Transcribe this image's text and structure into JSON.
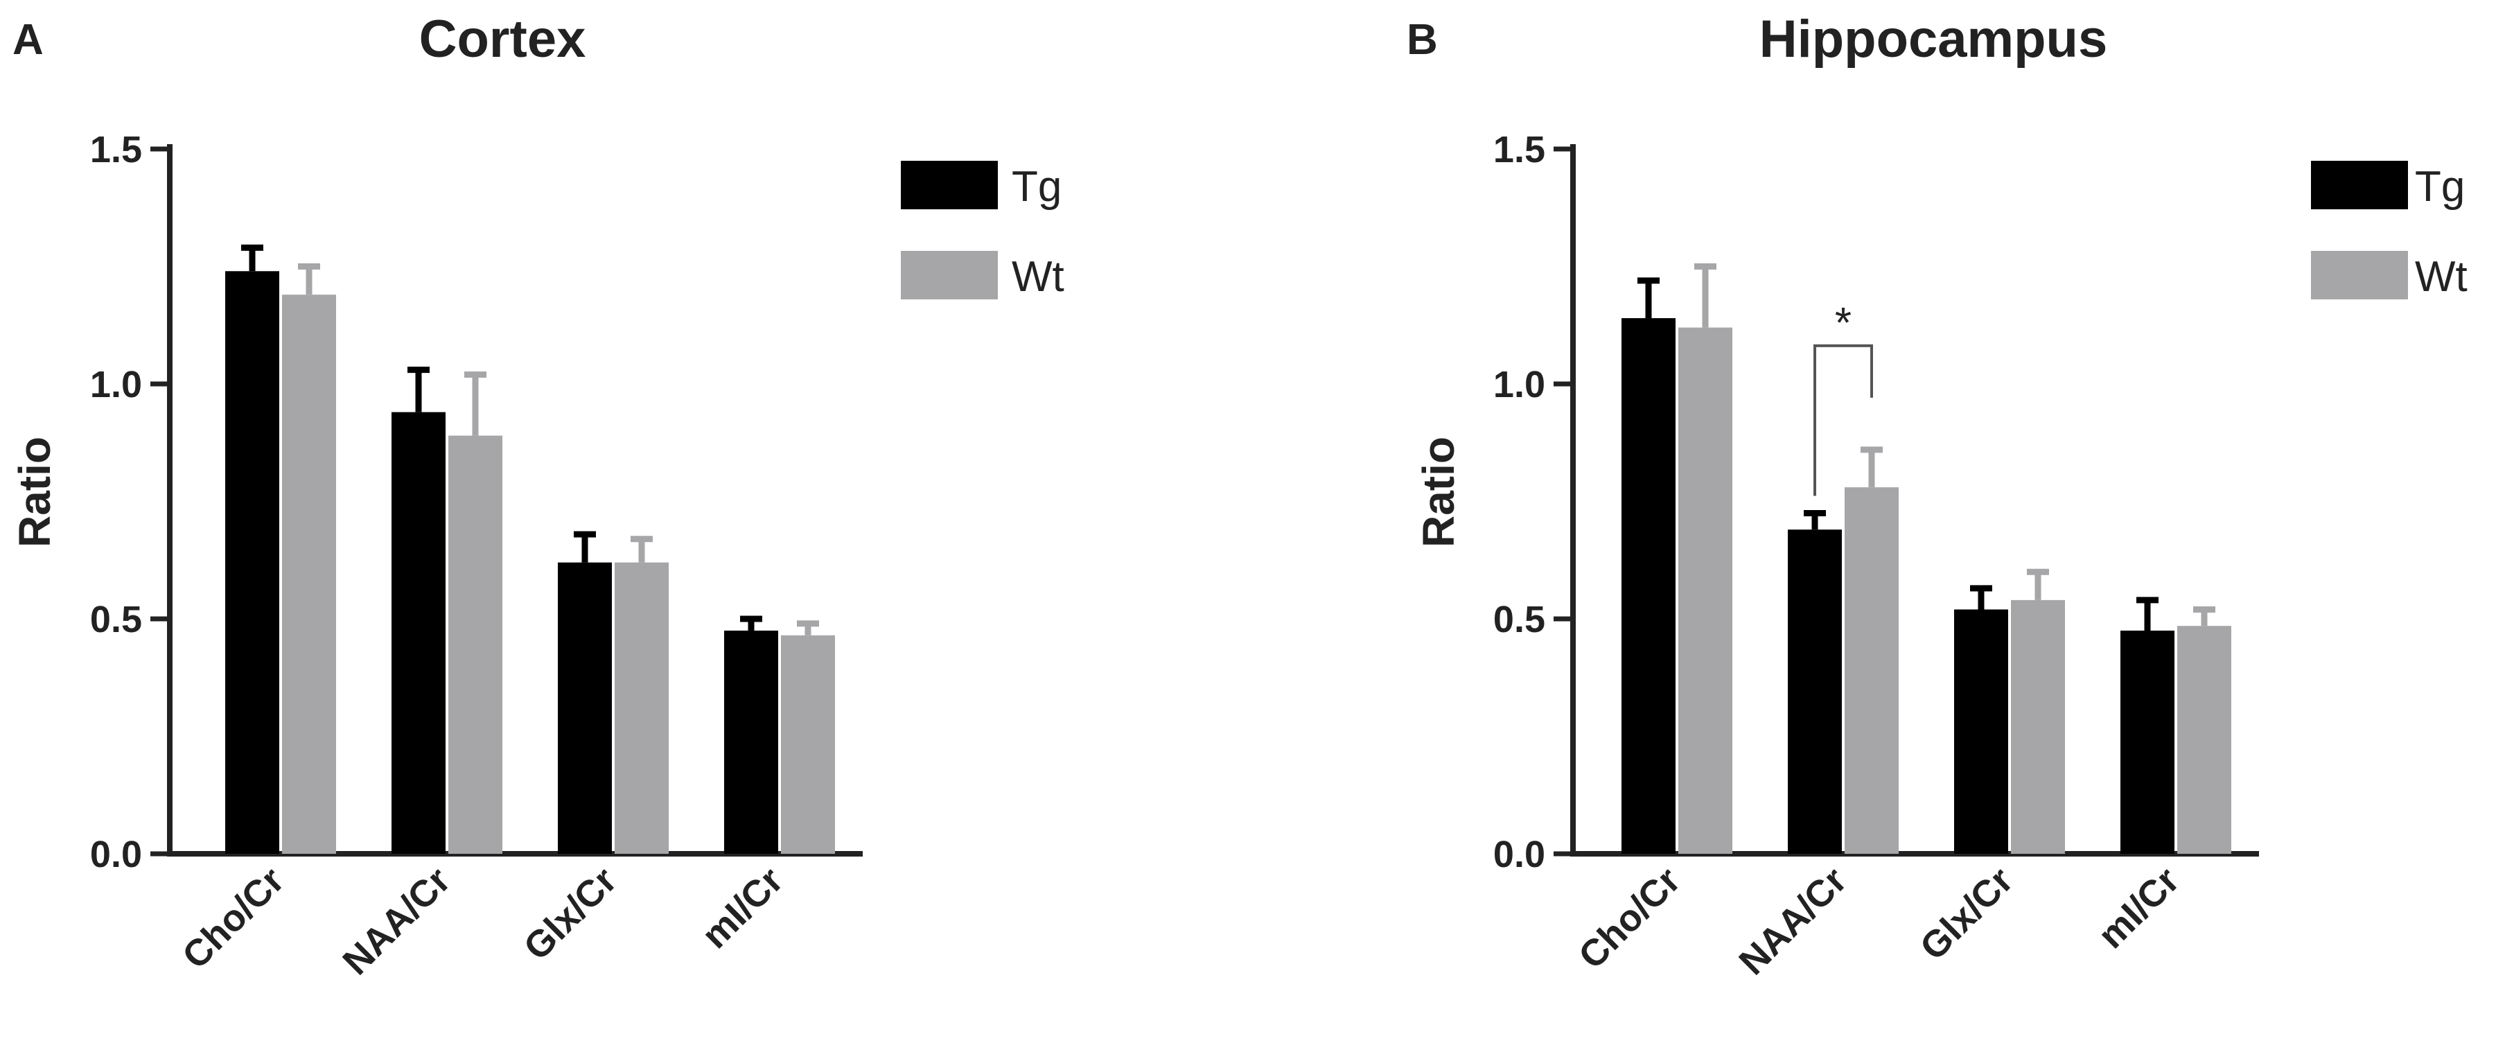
{
  "chart_data": [
    {
      "panel": "A",
      "type": "bar",
      "title": "Cortex",
      "ylabel": "Ratio",
      "xlabel": "",
      "ylim": [
        0,
        1.5
      ],
      "yticks": [
        "0.0",
        "0.5",
        "1.0",
        "1.5"
      ],
      "categories": [
        "Cho/Cr",
        "NAA/Cr",
        "Glx/Cr",
        "mI/Cr"
      ],
      "series": [
        {
          "name": "Tg",
          "color": "#000000",
          "values": [
            1.24,
            0.94,
            0.62,
            0.475
          ],
          "errors": [
            0.05,
            0.09,
            0.06,
            0.025
          ]
        },
        {
          "name": "Wt",
          "color": "#a6a6a8",
          "values": [
            1.19,
            0.89,
            0.62,
            0.465
          ],
          "errors": [
            0.06,
            0.13,
            0.05,
            0.025
          ]
        }
      ],
      "legend": "top-right",
      "grid": false,
      "significance": []
    },
    {
      "panel": "B",
      "type": "bar",
      "title": "Hippocampus",
      "ylabel": "Ratio",
      "xlabel": "",
      "ylim": [
        0,
        1.5
      ],
      "yticks": [
        "0.0",
        "0.5",
        "1.0",
        "1.5"
      ],
      "categories": [
        "Cho/Cr",
        "NAA/Cr",
        "Glx/Cr",
        "mI/Cr"
      ],
      "series": [
        {
          "name": "Tg",
          "color": "#000000",
          "values": [
            1.14,
            0.69,
            0.52,
            0.475
          ],
          "errors": [
            0.08,
            0.035,
            0.045,
            0.065
          ]
        },
        {
          "name": "Wt",
          "color": "#a6a6a8",
          "values": [
            1.12,
            0.78,
            0.54,
            0.485
          ],
          "errors": [
            0.13,
            0.08,
            0.06,
            0.035
          ]
        }
      ],
      "legend": "top-right",
      "grid": false,
      "significance": [
        {
          "category": "NAA/Cr",
          "label": "*"
        }
      ]
    }
  ]
}
